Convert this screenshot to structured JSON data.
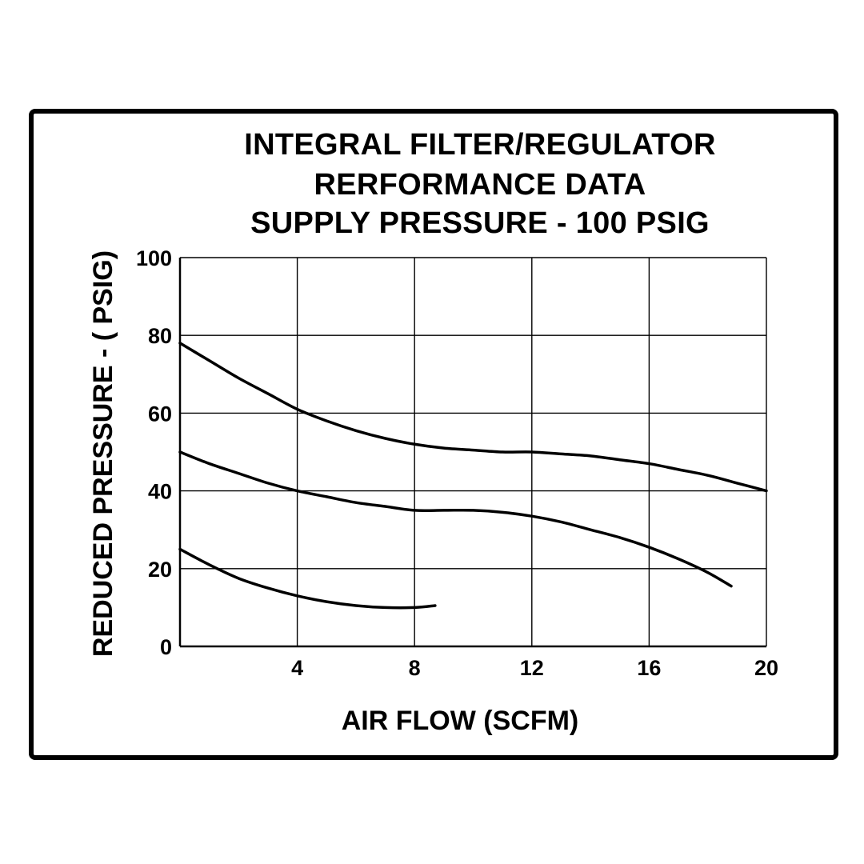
{
  "chart_data": {
    "type": "line",
    "title": [
      "INTEGRAL FILTER/REGULATOR",
      "RERFORMANCE DATA",
      "SUPPLY PRESSURE - 100 PSIG"
    ],
    "xlabel": "AIR FLOW (SCFM)",
    "ylabel": "REDUCED PRESSURE - ( PSIG)",
    "xlim": [
      0,
      20
    ],
    "ylim": [
      0,
      100
    ],
    "x_ticks": [
      "4",
      "8",
      "12",
      "16",
      "20"
    ],
    "y_ticks": [
      "0",
      "20",
      "40",
      "60",
      "80",
      "100"
    ],
    "grid": true,
    "legend": "none",
    "series": [
      {
        "x": [
          0,
          1,
          2,
          3,
          4,
          5,
          6,
          7,
          8,
          9,
          10,
          11,
          12,
          13,
          14,
          15,
          16,
          17,
          18,
          19,
          20
        ],
        "y": [
          78,
          73.5,
          69,
          65,
          61,
          58,
          55.5,
          53.5,
          52,
          51,
          50.5,
          50,
          50,
          49.5,
          49,
          48,
          47,
          45.5,
          44,
          42,
          40
        ]
      },
      {
        "x": [
          0,
          1,
          2,
          3,
          4,
          5,
          6,
          7,
          8,
          9,
          10,
          11,
          12,
          13,
          14,
          15,
          16,
          17,
          18,
          18.8
        ],
        "y": [
          50,
          47,
          44.5,
          42,
          40,
          38.5,
          37,
          36,
          35,
          35,
          35,
          34.5,
          33.5,
          32,
          30,
          28,
          25.5,
          22.5,
          19,
          15.5
        ]
      },
      {
        "x": [
          0,
          1,
          2,
          3,
          4,
          5,
          6,
          7,
          8,
          8.7
        ],
        "y": [
          25,
          21,
          17.5,
          15,
          13,
          11.5,
          10.5,
          10,
          10,
          10.5
        ]
      }
    ],
    "line_color": "#000000"
  }
}
